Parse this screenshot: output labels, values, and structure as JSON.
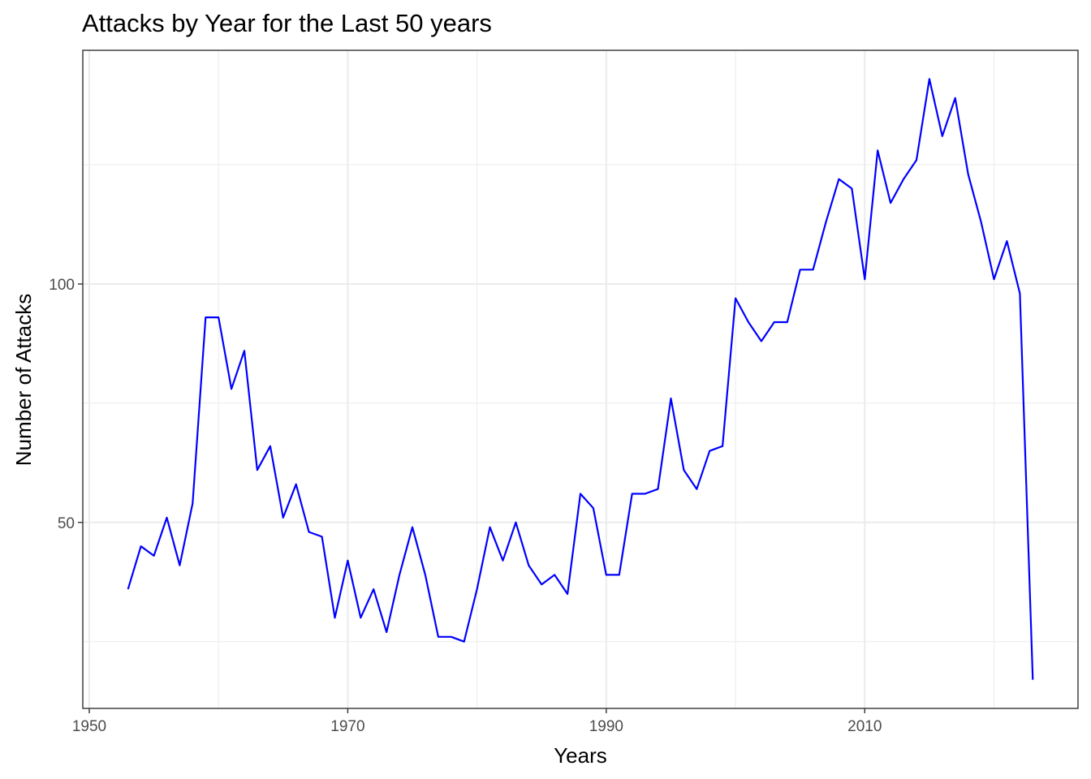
{
  "chart_data": {
    "type": "line",
    "title": "Attacks by Year for the Last 50 years",
    "xlabel": "Years",
    "ylabel": "Number of Attacks",
    "x_ticks": [
      1950,
      1970,
      1990,
      2010
    ],
    "y_ticks": [
      50,
      100
    ],
    "xlim": [
      1949.5,
      2026.5
    ],
    "ylim": [
      11,
      149
    ],
    "grid": true,
    "line_color": "#0000ff",
    "series": [
      {
        "x": [
          1953,
          1954,
          1955,
          1956,
          1957,
          1958,
          1959,
          1960,
          1961,
          1962,
          1963,
          1964,
          1965,
          1966,
          1967,
          1968,
          1969,
          1970,
          1971,
          1972,
          1973,
          1974,
          1975,
          1976,
          1977,
          1978,
          1979,
          1980,
          1981,
          1982,
          1983,
          1984,
          1985,
          1986,
          1987,
          1988,
          1989,
          1990,
          1991,
          1992,
          1993,
          1994,
          1995,
          1996,
          1997,
          1998,
          1999,
          2000,
          2001,
          2002,
          2003,
          2004,
          2005,
          2006,
          2007,
          2008,
          2009,
          2010,
          2011,
          2012,
          2013,
          2014,
          2015,
          2016,
          2017,
          2018,
          2019,
          2020,
          2021,
          2022,
          2023
        ],
        "y": [
          36,
          45,
          43,
          51,
          41,
          54,
          93,
          93,
          78,
          86,
          61,
          66,
          51,
          58,
          48,
          47,
          30,
          42,
          30,
          36,
          27,
          39,
          49,
          39,
          26,
          26,
          25,
          36,
          49,
          42,
          50,
          41,
          37,
          39,
          35,
          56,
          53,
          39,
          39,
          56,
          56,
          57,
          76,
          61,
          57,
          65,
          66,
          97,
          92,
          88,
          92,
          92,
          103,
          103,
          113,
          122,
          120,
          101,
          128,
          117,
          122,
          126,
          143,
          131,
          139,
          123,
          113,
          101,
          109,
          98,
          17
        ]
      }
    ]
  }
}
